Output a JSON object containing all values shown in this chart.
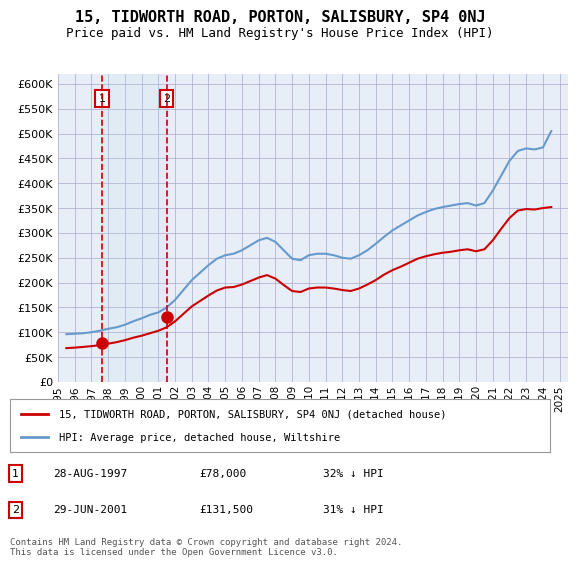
{
  "title": "15, TIDWORTH ROAD, PORTON, SALISBURY, SP4 0NJ",
  "subtitle": "Price paid vs. HM Land Registry's House Price Index (HPI)",
  "legend_line1": "15, TIDWORTH ROAD, PORTON, SALISBURY, SP4 0NJ (detached house)",
  "legend_line2": "HPI: Average price, detached house, Wiltshire",
  "footnote": "Contains HM Land Registry data © Crown copyright and database right 2024.\nThis data is licensed under the Open Government Licence v3.0.",
  "table": [
    {
      "num": 1,
      "date": "28-AUG-1997",
      "price": "£78,000",
      "rel": "32% ↓ HPI"
    },
    {
      "num": 2,
      "date": "29-JUN-2001",
      "price": "£131,500",
      "rel": "31% ↓ HPI"
    }
  ],
  "transactions": [
    {
      "year": 1997.65,
      "price": 78000,
      "label": "1"
    },
    {
      "year": 2001.49,
      "price": 131500,
      "label": "2"
    }
  ],
  "ylim": [
    0,
    620000
  ],
  "yticks": [
    0,
    50000,
    100000,
    150000,
    200000,
    250000,
    300000,
    350000,
    400000,
    450000,
    500000,
    550000,
    600000
  ],
  "xlim": [
    1995,
    2025.5
  ],
  "bg_color": "#e8eef8",
  "plot_bg": "#ffffff",
  "red_color": "#cc0000",
  "blue_color": "#6699cc",
  "grid_color": "#aaaacc",
  "hpi_wiltshire_detached": {
    "years": [
      1995.5,
      1996.0,
      1996.5,
      1997.0,
      1997.5,
      1998.0,
      1998.5,
      1999.0,
      1999.5,
      2000.0,
      2000.5,
      2001.0,
      2001.5,
      2002.0,
      2002.5,
      2003.0,
      2003.5,
      2004.0,
      2004.5,
      2005.0,
      2005.5,
      2006.0,
      2006.5,
      2007.0,
      2007.5,
      2008.0,
      2008.5,
      2009.0,
      2009.5,
      2010.0,
      2010.5,
      2011.0,
      2011.5,
      2012.0,
      2012.5,
      2013.0,
      2013.5,
      2014.0,
      2014.5,
      2015.0,
      2015.5,
      2016.0,
      2016.5,
      2017.0,
      2017.5,
      2018.0,
      2018.5,
      2019.0,
      2019.5,
      2020.0,
      2020.5,
      2021.0,
      2021.5,
      2022.0,
      2022.5,
      2023.0,
      2023.5,
      2024.0,
      2024.5
    ],
    "values": [
      96000,
      97000,
      98000,
      100000,
      103000,
      107000,
      110000,
      115000,
      122000,
      128000,
      135000,
      140000,
      150000,
      165000,
      185000,
      205000,
      220000,
      235000,
      248000,
      255000,
      258000,
      265000,
      275000,
      285000,
      290000,
      282000,
      265000,
      248000,
      245000,
      255000,
      258000,
      258000,
      255000,
      250000,
      248000,
      255000,
      265000,
      278000,
      292000,
      305000,
      315000,
      325000,
      335000,
      342000,
      348000,
      352000,
      355000,
      358000,
      360000,
      355000,
      360000,
      385000,
      415000,
      445000,
      465000,
      470000,
      468000,
      472000,
      505000
    ]
  },
  "property_hpi": {
    "years": [
      1995.5,
      1996.0,
      1996.5,
      1997.0,
      1997.5,
      1998.0,
      1998.5,
      1999.0,
      1999.5,
      2000.0,
      2000.5,
      2001.0,
      2001.5,
      2002.0,
      2002.5,
      2003.0,
      2003.5,
      2004.0,
      2004.5,
      2005.0,
      2005.5,
      2006.0,
      2006.5,
      2007.0,
      2007.5,
      2008.0,
      2008.5,
      2009.0,
      2009.5,
      2010.0,
      2010.5,
      2011.0,
      2011.5,
      2012.0,
      2012.5,
      2013.0,
      2013.5,
      2014.0,
      2014.5,
      2015.0,
      2015.5,
      2016.0,
      2016.5,
      2017.0,
      2017.5,
      2018.0,
      2018.5,
      2019.0,
      2019.5,
      2020.0,
      2020.5,
      2021.0,
      2021.5,
      2022.0,
      2022.5,
      2023.0,
      2023.5,
      2024.0,
      2024.5
    ],
    "values": [
      68000,
      69000,
      70500,
      72000,
      74000,
      77000,
      80000,
      84000,
      89000,
      93000,
      98000,
      103000,
      110000,
      122000,
      137000,
      152000,
      163000,
      174000,
      184000,
      190000,
      191000,
      196000,
      203000,
      210000,
      215000,
      208000,
      195000,
      183000,
      181000,
      188000,
      190000,
      190000,
      188000,
      185000,
      183000,
      188000,
      196000,
      205000,
      216000,
      225000,
      232000,
      240000,
      248000,
      253000,
      257000,
      260000,
      262000,
      265000,
      267000,
      263000,
      267000,
      285000,
      308000,
      330000,
      345000,
      348000,
      347000,
      350000,
      352000
    ]
  }
}
